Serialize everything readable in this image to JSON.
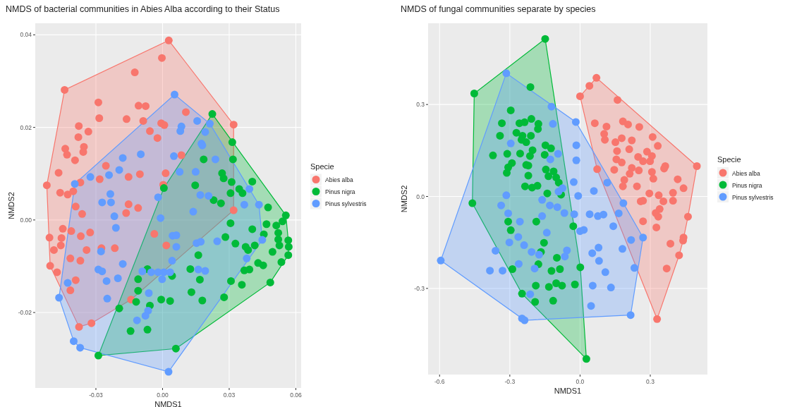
{
  "chart_data": [
    {
      "type": "scatter",
      "title": "NMDS of bacterial communities in Abies Alba according to their Status",
      "xlabel": "NMDS1",
      "ylabel": "NMDS2",
      "legend_title": "Specie",
      "legend": "right",
      "grid": true,
      "marker": "circle",
      "xlim": [
        -0.0573,
        0.0624
      ],
      "ylim": [
        -0.0363,
        0.0425
      ],
      "xticks": [
        -0.03,
        {
          "value": 0,
          "label": "0.00"
        },
        0.03,
        0.06
      ],
      "yticks": [
        -0.02,
        {
          "value": 0,
          "label": "0.00"
        },
        0.02,
        0.04
      ],
      "series": [
        {
          "name": "Abies alba",
          "color": "#f8766d",
          "x": [
            0.0028,
            -0.0003,
            -0.0125,
            -0.0441,
            -0.0289,
            -0.0108,
            -0.0076,
            -0.0285,
            -0.0162,
            -0.0087,
            0.0105,
            -0.0006,
            0.0008,
            0.032,
            -0.0377,
            -0.0334,
            -0.0379,
            -0.0057,
            -0.0023,
            -0.0438,
            -0.043,
            -0.0354,
            -0.0357,
            -0.0394,
            0.0085,
            -0.0255,
            -0.0468,
            -0.0153,
            -0.0102,
            0.0014,
            -0.0283,
            -0.037,
            -0.0521,
            0.0003,
            -0.0461,
            -0.0427,
            -0.0402,
            -0.0153,
            -0.0391,
            -0.011,
            -0.0164,
            -0.0362,
            0.032,
            -0.0449,
            -0.0411,
            -0.0326,
            -0.0037,
            -0.0509,
            -0.0368,
            -0.0455,
            -0.0458,
            -0.0489,
            -0.0342,
            -0.0275,
            -0.0215,
            0.0017,
            -0.0415,
            -0.037,
            -0.0506,
            -0.0475,
            -0.0391,
            -0.0415,
            -0.0142,
            -0.0376,
            -0.032
          ],
          "values": [
            0.0388,
            0.035,
            0.0319,
            0.0281,
            0.0254,
            0.0247,
            0.0246,
            0.022,
            0.0218,
            0.0214,
            0.0233,
            0.0209,
            0.0205,
            0.0206,
            0.0203,
            0.0191,
            0.0179,
            0.0192,
            0.0177,
            0.0154,
            0.0141,
            0.0158,
            0.0147,
            0.0129,
            0.014,
            0.0117,
            0.0102,
            0.0093,
            0.0099,
            0.0101,
            0.0088,
            0.0081,
            0.0075,
            0.0076,
            0.0059,
            0.0055,
            0.0062,
            0.0034,
            0.0029,
            0.0026,
            0.0015,
            0.0013,
            0.0021,
            -0.0019,
            -0.0024,
            -0.0027,
            -0.003,
            -0.0038,
            -0.0035,
            -0.0039,
            -0.0055,
            -0.0065,
            -0.0065,
            -0.0061,
            -0.0061,
            -0.0055,
            -0.0083,
            -0.0088,
            -0.0099,
            -0.0113,
            -0.013,
            -0.0152,
            -0.0172,
            -0.0231,
            -0.0223
          ]
        },
        {
          "name": "Pinus nigra",
          "color": "#00ba38",
          "x": [
            0.0224,
            0.0314,
            0.0185,
            0.0317,
            0.0268,
            0.0275,
            0.0311,
            0.0404,
            0.0147,
            0.0345,
            0.036,
            0.0306,
            0.0006,
            0.023,
            0.0263,
            0.0475,
            0.0306,
            0.0555,
            0.054,
            0.0468,
            0.0512,
            0.0404,
            0.0521,
            0.0456,
            0.0283,
            0.0521,
            0.0566,
            0.0328,
            0.0526,
            0.0568,
            0.0374,
            0.0415,
            0.0385,
            0.0495,
            0.0566,
            0.0161,
            0.0535,
            0.043,
            0.0453,
            0.0368,
            0.0391,
            -0.0068,
            0.0125,
            0.0043,
            0.0168,
            -0.011,
            0.0308,
            0.0485,
            0.0357,
            -0.011,
            0.013,
            -0.0006,
            0.0034,
            -0.0119,
            0.0179,
            0.0277,
            -0.0057,
            -0.0195,
            -0.0144,
            -0.0068,
            0.006,
            -0.0289
          ],
          "values": [
            0.0229,
            0.0168,
            0.0131,
            0.0131,
            0.0101,
            0.009,
            0.0082,
            0.0083,
            0.0075,
            0.0067,
            0.0058,
            0.0058,
            0.0069,
            0.0043,
            0.0036,
            0.0027,
            -0.0007,
            0.001,
            -0.0003,
            -0.0009,
            -0.0012,
            -0.002,
            -0.0028,
            -0.0031,
            -0.0037,
            -0.0042,
            -0.0044,
            -0.0051,
            -0.0055,
            -0.0058,
            -0.0058,
            -0.0055,
            -0.0065,
            -0.0069,
            -0.0076,
            -0.0076,
            -0.0091,
            -0.0093,
            -0.0098,
            -0.0109,
            -0.0107,
            -0.0106,
            -0.0106,
            -0.0121,
            -0.0129,
            -0.0128,
            -0.0132,
            -0.0135,
            -0.014,
            -0.0153,
            -0.0156,
            -0.0172,
            -0.0175,
            -0.0177,
            -0.0174,
            -0.0167,
            -0.0185,
            -0.0191,
            -0.024,
            -0.0237,
            -0.0278,
            -0.0293
          ]
        },
        {
          "name": "Pinus sylvestris",
          "color": "#619cff",
          "x": [
            0.0054,
            0.0156,
            0.0213,
            0.0085,
            0.008,
            0.0192,
            0.0175,
            0.0179,
            0.0051,
            0.0238,
            -0.0179,
            -0.0098,
            -0.0195,
            -0.0241,
            -0.0325,
            0.0077,
            0.0149,
            -0.0395,
            -0.0235,
            -0.0272,
            -0.0232,
            -0.002,
            0.017,
            0.0207,
            0.0391,
            0.0368,
            0.0434,
            0.0138,
            -0.0217,
            -0.0009,
            -0.021,
            0.0045,
            0.0062,
            0.0449,
            0.0153,
            0.0172,
            0.0246,
            0.0062,
            -0.0277,
            0.0379,
            0.0043,
            -0.0179,
            -0.0289,
            -0.0272,
            -0.0091,
            -0.0051,
            -0.002,
            0.0006,
            0.0034,
            0.0161,
            0.0192,
            -0.0002,
            -0.0252,
            -0.0201,
            -0.0427,
            -0.0062,
            -0.0249,
            -0.0466,
            -0.0065,
            -0.0077,
            -0.0115,
            -0.04,
            -0.0371,
            0.0027
          ],
          "values": [
            0.0271,
            0.0214,
            0.0208,
            0.0202,
            0.0192,
            0.019,
            0.0165,
            0.0161,
            0.0138,
            0.0131,
            0.0134,
            0.0142,
            0.0108,
            0.0097,
            0.0093,
            0.0104,
            0.0104,
            0.0078,
            0.0056,
            0.0038,
            0.0038,
            0.0049,
            0.0054,
            0.0052,
            0.0067,
            0.0033,
            0.0033,
            0.0018,
            0.0008,
            0.0004,
            -0.0017,
            -0.0034,
            -0.0033,
            -0.0043,
            -0.005,
            -0.0047,
            -0.0046,
            -0.0058,
            -0.0068,
            -0.0083,
            -0.0088,
            -0.0095,
            -0.0107,
            -0.0111,
            -0.0111,
            -0.0113,
            -0.0113,
            -0.0113,
            -0.0113,
            -0.0107,
            -0.011,
            -0.0128,
            -0.0132,
            -0.0126,
            -0.0136,
            -0.0158,
            -0.017,
            -0.0168,
            -0.0196,
            -0.0207,
            -0.0217,
            -0.0262,
            -0.0276,
            -0.0328
          ]
        }
      ]
    },
    {
      "type": "scatter",
      "title": "NMDS of fungal communities separate by species",
      "xlabel": "NMDS1",
      "ylabel": "NMDS2",
      "legend_title": "Specie",
      "legend": "right",
      "grid": true,
      "marker": "circle",
      "xlim": [
        -0.649,
        0.544
      ],
      "ylim": [
        -0.581,
        0.565
      ],
      "xticks": [
        -0.6,
        -0.3,
        {
          "value": 0,
          "label": "0.0"
        },
        0.3
      ],
      "yticks": [
        -0.3,
        {
          "value": 0,
          "label": "0.0"
        },
        0.3
      ],
      "series": [
        {
          "name": "Abies alba",
          "color": "#f8766d",
          "x": [
            0.07,
            0.04,
            0,
            0.16,
            0.063,
            0.113,
            0.183,
            0.205,
            0.253,
            0.103,
            0.106,
            0.151,
            0.178,
            0.221,
            0.31,
            0.332,
            0.158,
            0.21,
            0.286,
            0.307,
            0.248,
            0.155,
            0.178,
            0.269,
            0.299,
            0.073,
            0.146,
            0.221,
            0.251,
            0.212,
            0.364,
            0.359,
            0.307,
            0.313,
            0.499,
            0.417,
            0.189,
            0.183,
            0.243,
            0.442,
            0.296,
            0.397,
            0.336,
            0.259,
            0.269,
            0.356,
            0.397,
            0.34,
            0.323,
            0.461,
            0.334,
            0.269,
            0.326,
            0.442,
            0.44,
            0.386,
            0.423,
            0.37,
            0.329
          ],
          "values": [
            0.387,
            0.361,
            0.327,
            0.315,
            0.239,
            0.228,
            0.245,
            0.235,
            0.227,
            0.204,
            0.185,
            0.177,
            0.19,
            0.183,
            0.194,
            0.165,
            0.148,
            0.154,
            0.146,
            0.132,
            0.129,
            0.121,
            0.111,
            0.115,
            0.115,
            0.089,
            0.087,
            0.093,
            0.085,
            0.074,
            0.099,
            0.091,
            0.08,
            0.058,
            0.099,
            0.056,
            0.054,
            0.033,
            0.033,
            0.027,
            0.01,
            0.012,
            0.004,
            -0.016,
            -0.014,
            -0.016,
            -0.014,
            -0.041,
            -0.054,
            -0.066,
            -0.066,
            -0.081,
            -0.101,
            -0.134,
            -0.144,
            -0.154,
            -0.192,
            -0.235,
            -0.4
          ]
        },
        {
          "name": "Pinus nigra",
          "color": "#00ba38",
          "x": [
            -0.149,
            -0.212,
            -0.452,
            -0.296,
            -0.334,
            -0.259,
            -0.237,
            -0.208,
            -0.178,
            -0.18,
            -0.342,
            -0.272,
            -0.246,
            -0.21,
            -0.25,
            -0.23,
            -0.148,
            -0.124,
            -0.372,
            -0.311,
            -0.256,
            -0.203,
            -0.214,
            -0.151,
            -0.291,
            -0.307,
            -0.23,
            -0.221,
            -0.146,
            -0.113,
            -0.313,
            -0.221,
            -0.135,
            -0.102,
            -0.091,
            -0.235,
            -0.205,
            -0.182,
            -0.14,
            -0.081,
            -0.46,
            -0.307,
            -0.187,
            -0.296,
            -0.029,
            -0.154,
            -0.167,
            -0.099,
            -0.178,
            0.001,
            -0.289,
            -0.122,
            -0.086,
            -0.189,
            -0.133,
            -0.102,
            -0.077,
            -0.022,
            -0.248,
            -0.192,
            -0.115,
            0.027
          ],
          "values": [
            0.514,
            0.357,
            0.336,
            0.281,
            0.239,
            0.239,
            0.242,
            0.253,
            0.237,
            0.22,
            0.198,
            0.208,
            0.198,
            0.198,
            0.185,
            0.177,
            0.167,
            0.157,
            0.134,
            0.139,
            0.14,
            0.151,
            0.132,
            0.136,
            0.109,
            0.095,
            0.103,
            0.101,
            0.088,
            0.082,
            0.077,
            0.068,
            0.066,
            0.062,
            0.045,
            0.033,
            0.029,
            0.035,
            0.01,
            0.006,
            -0.022,
            -0.082,
            -0.082,
            -0.11,
            -0.097,
            -0.151,
            -0.181,
            -0.2,
            -0.221,
            -0.231,
            -0.237,
            -0.243,
            -0.237,
            -0.291,
            -0.295,
            -0.283,
            -0.291,
            -0.287,
            -0.317,
            -0.344,
            -0.34,
            -0.53
          ]
        },
        {
          "name": "Pinus sylvestris",
          "color": "#619cff",
          "x": [
            -0.315,
            -0.122,
            -0.018,
            -0.116,
            -0.296,
            -0.016,
            -0.094,
            -0.127,
            -0.016,
            -0.027,
            0.116,
            -0.075,
            -0.092,
            0.059,
            -0.315,
            -0.008,
            -0.162,
            -0.337,
            0.185,
            -0.129,
            -0.097,
            -0.067,
            -0.307,
            -0.025,
            0.041,
            0.076,
            0.1,
            0.165,
            -0.162,
            -0.257,
            0.142,
            0,
            0.016,
            -0.142,
            -0.264,
            0.269,
            0.218,
            -0.302,
            -0.239,
            0.181,
            -0.361,
            0.079,
            -0.207,
            -0.175,
            -0.056,
            0.052,
            -0.065,
            -0.595,
            0.081,
            -0.262,
            -0.194,
            0.232,
            -0.385,
            -0.331,
            0.108,
            0.054,
            0.132,
            -0.213,
            0.047,
            0.216,
            -0.248,
            -0.237
          ],
          "values": [
            0.402,
            0.293,
            0.243,
            0.237,
            0.173,
            0.167,
            0.139,
            0.121,
            0.118,
            0.047,
            0.045,
            0.027,
            0.016,
            0.018,
            0.004,
            0.002,
            -0.011,
            -0.029,
            -0.022,
            -0.029,
            -0.035,
            -0.054,
            -0.055,
            -0.058,
            -0.058,
            -0.064,
            -0.059,
            -0.055,
            -0.064,
            -0.082,
            -0.097,
            -0.113,
            -0.109,
            -0.118,
            -0.132,
            -0.134,
            -0.142,
            -0.15,
            -0.159,
            -0.171,
            -0.177,
            -0.167,
            -0.181,
            -0.19,
            -0.176,
            -0.185,
            -0.196,
            -0.209,
            -0.21,
            -0.22,
            -0.235,
            -0.233,
            -0.242,
            -0.242,
            -0.247,
            -0.291,
            -0.297,
            -0.319,
            -0.357,
            -0.387,
            -0.398,
            -0.404
          ]
        }
      ]
    }
  ]
}
